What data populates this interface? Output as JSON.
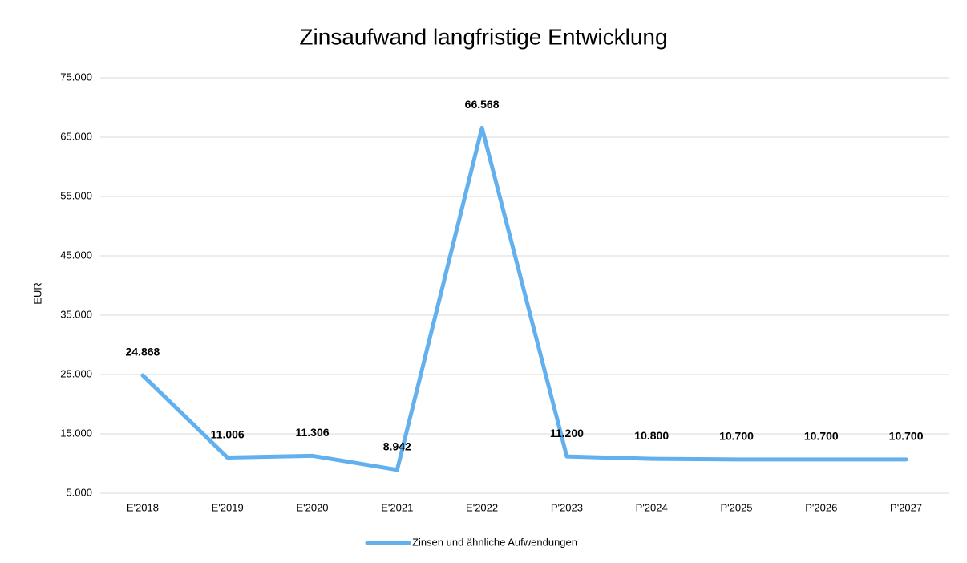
{
  "chart_data": {
    "type": "line",
    "title": "Zinsaufwand langfristige Entwicklung",
    "y_label": "EUR",
    "categories": [
      "E'2018",
      "E'2019",
      "E'2020",
      "E'2021",
      "E'2022",
      "P'2023",
      "P'2024",
      "P'2025",
      "P'2026",
      "P'2027"
    ],
    "series": [
      {
        "name": "Zinsen und ähnliche Aufwendungen",
        "color": "#63b0ee",
        "values": [
          24868,
          11006,
          11306,
          8942,
          66568,
          11200,
          10800,
          10700,
          10700,
          10700
        ],
        "value_labels": [
          "24.868",
          "11.006",
          "11.306",
          "8.942",
          "66.568",
          "11.200",
          "10.800",
          "10.700",
          "10.700",
          "10.700"
        ]
      }
    ],
    "ylim": [
      5000,
      75000
    ],
    "yticks": [
      {
        "value": 5000,
        "label": "5.000"
      },
      {
        "value": 15000,
        "label": "15.000"
      },
      {
        "value": 25000,
        "label": "25.000"
      },
      {
        "value": 35000,
        "label": "35.000"
      },
      {
        "value": 45000,
        "label": "45.000"
      },
      {
        "value": 55000,
        "label": "55.000"
      },
      {
        "value": 65000,
        "label": "65.000"
      },
      {
        "value": 75000,
        "label": "75.000"
      }
    ],
    "grid": true,
    "legend": "bottom"
  }
}
